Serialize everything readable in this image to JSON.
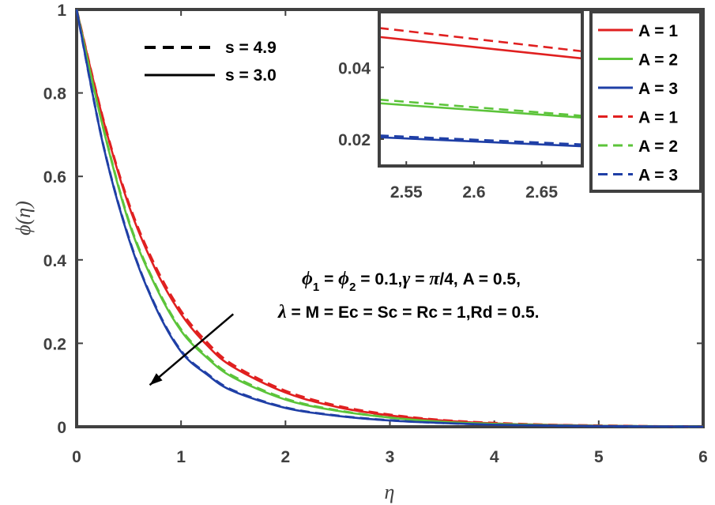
{
  "chart_data": {
    "type": "line",
    "xlabel": "η",
    "ylabel": "ϕ(η)",
    "xlim": [
      0,
      6
    ],
    "ylim": [
      0,
      1
    ],
    "xticks": [
      "0",
      "1",
      "2",
      "3",
      "4",
      "5",
      "6"
    ],
    "yticks": [
      "0",
      "0.2",
      "0.4",
      "0.6",
      "0.8",
      "1"
    ],
    "x": [
      0,
      0.25,
      0.5,
      0.75,
      1,
      1.25,
      1.5,
      2,
      2.5,
      3,
      3.5,
      4,
      4.5,
      5,
      5.5,
      6
    ],
    "series": [
      {
        "name": "A = 1",
        "s": "3.0",
        "style": "solid",
        "color": "#e02020",
        "values": [
          1,
          0.74,
          0.53,
          0.38,
          0.27,
          0.195,
          0.143,
          0.082,
          0.047,
          0.027,
          0.015,
          0.008,
          0.0045,
          0.0025,
          0.0012,
          0
        ]
      },
      {
        "name": "A = 2",
        "s": "3.0",
        "style": "solid",
        "color": "#5cc43a",
        "values": [
          1,
          0.72,
          0.49,
          0.34,
          0.23,
          0.165,
          0.118,
          0.065,
          0.038,
          0.022,
          0.012,
          0.007,
          0.004,
          0.002,
          0.001,
          0
        ]
      },
      {
        "name": "A = 3",
        "s": "3.0",
        "style": "solid",
        "color": "#1f3fa6",
        "values": [
          1,
          0.68,
          0.45,
          0.29,
          0.18,
          0.125,
          0.085,
          0.045,
          0.026,
          0.015,
          0.009,
          0.005,
          0.003,
          0.0015,
          0.0008,
          0
        ]
      },
      {
        "name": "A = 1",
        "s": "4.9",
        "style": "dashed",
        "color": "#e02020",
        "values": [
          1,
          0.742,
          0.535,
          0.387,
          0.277,
          0.202,
          0.148,
          0.086,
          0.05,
          0.029,
          0.016,
          0.009,
          0.005,
          0.0028,
          0.0014,
          0
        ]
      },
      {
        "name": "A = 2",
        "s": "4.9",
        "style": "dashed",
        "color": "#5cc43a",
        "values": [
          1,
          0.722,
          0.493,
          0.343,
          0.233,
          0.168,
          0.121,
          0.067,
          0.039,
          0.0225,
          0.0125,
          0.0072,
          0.0042,
          0.0021,
          0.0011,
          0
        ]
      },
      {
        "name": "A = 3",
        "s": "4.9",
        "style": "dashed",
        "color": "#1f3fa6",
        "values": [
          1,
          0.681,
          0.452,
          0.292,
          0.182,
          0.127,
          0.087,
          0.046,
          0.0265,
          0.0155,
          0.0092,
          0.0052,
          0.0031,
          0.0016,
          0.0008,
          0
        ]
      }
    ],
    "inset": {
      "xlim": [
        2.53,
        2.68
      ],
      "ylim": [
        0.0125,
        0.0555
      ],
      "xticks": [
        "2.55",
        "2.6",
        "2.65"
      ],
      "yticks": [
        "0.02",
        "0.04"
      ],
      "x": [
        2.53,
        2.68
      ],
      "series": [
        {
          "name": "A = 1",
          "style": "solid",
          "color": "#e02020",
          "values": [
            0.0485,
            0.0425
          ]
        },
        {
          "name": "A = 1",
          "style": "dashed",
          "color": "#e02020",
          "values": [
            0.051,
            0.0445
          ]
        },
        {
          "name": "A = 2",
          "style": "solid",
          "color": "#5cc43a",
          "values": [
            0.03,
            0.026
          ]
        },
        {
          "name": "A = 2",
          "style": "dashed",
          "color": "#5cc43a",
          "values": [
            0.031,
            0.0265
          ]
        },
        {
          "name": "A = 3",
          "style": "solid",
          "color": "#1f3fa6",
          "values": [
            0.0205,
            0.018
          ]
        },
        {
          "name": "A = 3",
          "style": "dashed",
          "color": "#1f3fa6",
          "values": [
            0.021,
            0.0185
          ]
        }
      ]
    },
    "legend": [
      {
        "label": "A = 1",
        "style": "solid",
        "color": "#e02020"
      },
      {
        "label": "A = 2",
        "style": "solid",
        "color": "#5cc43a"
      },
      {
        "label": "A = 3",
        "style": "solid",
        "color": "#1f3fa6"
      },
      {
        "label": "A = 1",
        "style": "dashed",
        "color": "#e02020"
      },
      {
        "label": "A = 2",
        "style": "dashed",
        "color": "#5cc43a"
      },
      {
        "label": "A = 3",
        "style": "dashed",
        "color": "#1f3fa6"
      }
    ],
    "style_legend": [
      {
        "label": "s = 4.9",
        "style": "dashed"
      },
      {
        "label": "s = 3.0",
        "style": "solid"
      }
    ],
    "annotation": {
      "phi": "ϕ",
      "sub1": "1",
      "eq1": " = ",
      "sub2": "2",
      "line1_rest": " = 0.1,",
      "gamma": "γ",
      "eq2": " = ",
      "pi": "π",
      "line1_tail": "/4, A = 0.5,",
      "lambda": "λ",
      "line2_rest": " = M = Ec = Sc = Rc = 1,Rd = 0.5."
    },
    "arrow": {
      "from": [
        1.5,
        0.27
      ],
      "to": [
        0.7,
        0.1
      ],
      "meaning": "increasing A"
    }
  }
}
